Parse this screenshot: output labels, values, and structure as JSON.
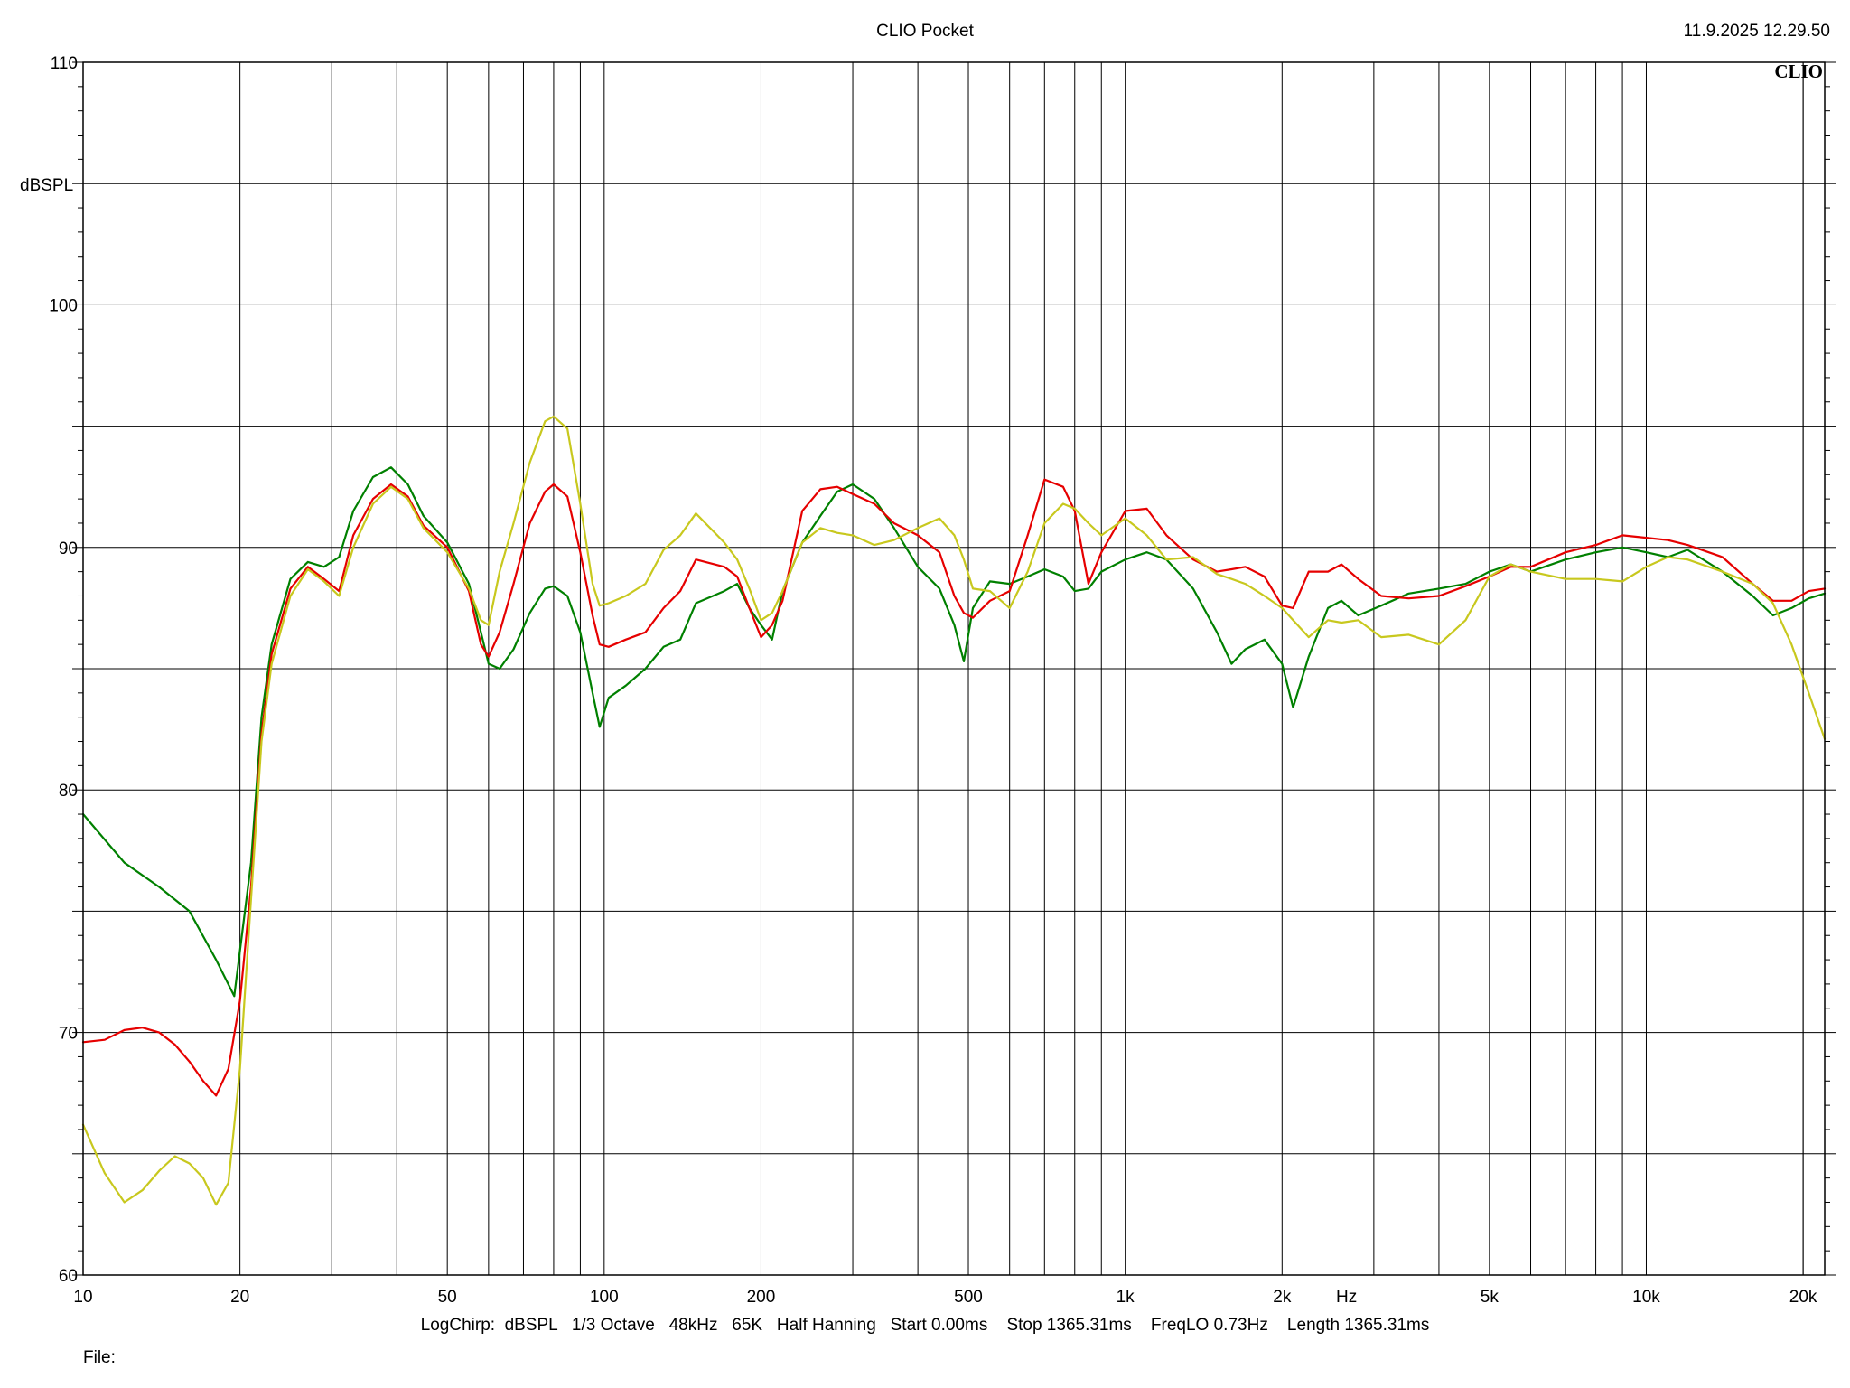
{
  "app_title": "CLIO Pocket",
  "timestamp": "11.9.2025 12.29.50",
  "watermark": "CLIO",
  "settings_line": "LogChirp:  dBSPL   1/3 Octave   48kHz   65K   Half Hanning   Start 0.00ms    Stop 1365.31ms    FreqLO 0.73Hz    Length 1365.31ms",
  "file_label": "File:",
  "chart_data": {
    "type": "line",
    "title": "",
    "xlabel": "Hz",
    "ylabel": "dBSPL",
    "x_scale": "log",
    "xlim": [
      10,
      22000
    ],
    "ylim": [
      60,
      110
    ],
    "grid": true,
    "x_ticks": [
      {
        "value": 10,
        "label": "10"
      },
      {
        "value": 20,
        "label": "20"
      },
      {
        "value": 50,
        "label": "50"
      },
      {
        "value": 100,
        "label": "100"
      },
      {
        "value": 200,
        "label": "200"
      },
      {
        "value": 500,
        "label": "500"
      },
      {
        "value": 1000,
        "label": "1k"
      },
      {
        "value": 2000,
        "label": "2k"
      },
      {
        "value": 5000,
        "label": "5k"
      },
      {
        "value": 10000,
        "label": "10k"
      },
      {
        "value": 20000,
        "label": "20k"
      }
    ],
    "y_ticks": [
      {
        "value": 60,
        "label": "60"
      },
      {
        "value": 70,
        "label": "70"
      },
      {
        "value": 80,
        "label": "80"
      },
      {
        "value": 90,
        "label": "90"
      },
      {
        "value": 100,
        "label": "100"
      },
      {
        "value": 110,
        "label": "110"
      }
    ],
    "series": [
      {
        "color": "#008000",
        "points": [
          [
            10,
            79
          ],
          [
            12,
            77
          ],
          [
            14,
            76
          ],
          [
            16,
            75
          ],
          [
            18,
            73
          ],
          [
            19.5,
            71.5
          ],
          [
            21,
            77
          ],
          [
            22,
            83
          ],
          [
            23,
            86
          ],
          [
            25,
            88.7
          ],
          [
            27,
            89.4
          ],
          [
            29,
            89.2
          ],
          [
            31,
            89.6
          ],
          [
            33,
            91.5
          ],
          [
            36,
            92.9
          ],
          [
            39,
            93.3
          ],
          [
            42,
            92.6
          ],
          [
            45,
            91.3
          ],
          [
            50,
            90.2
          ],
          [
            55,
            88.5
          ],
          [
            58,
            86.5
          ],
          [
            60,
            85.2
          ],
          [
            63,
            85.0
          ],
          [
            67,
            85.8
          ],
          [
            72,
            87.3
          ],
          [
            77,
            88.3
          ],
          [
            80,
            88.4
          ],
          [
            85,
            88.0
          ],
          [
            90,
            86.5
          ],
          [
            95,
            84.0
          ],
          [
            98,
            82.6
          ],
          [
            102,
            83.8
          ],
          [
            110,
            84.3
          ],
          [
            120,
            85.0
          ],
          [
            130,
            85.9
          ],
          [
            140,
            86.2
          ],
          [
            150,
            87.7
          ],
          [
            170,
            88.2
          ],
          [
            180,
            88.5
          ],
          [
            190,
            87.5
          ],
          [
            200,
            86.8
          ],
          [
            210,
            86.2
          ],
          [
            220,
            88.2
          ],
          [
            240,
            90.2
          ],
          [
            260,
            91.3
          ],
          [
            280,
            92.3
          ],
          [
            300,
            92.6
          ],
          [
            330,
            92.0
          ],
          [
            360,
            90.8
          ],
          [
            400,
            89.2
          ],
          [
            440,
            88.3
          ],
          [
            470,
            86.8
          ],
          [
            490,
            85.3
          ],
          [
            510,
            87.5
          ],
          [
            550,
            88.6
          ],
          [
            600,
            88.5
          ],
          [
            650,
            88.8
          ],
          [
            700,
            89.1
          ],
          [
            760,
            88.8
          ],
          [
            800,
            88.2
          ],
          [
            850,
            88.3
          ],
          [
            900,
            89.0
          ],
          [
            1000,
            89.5
          ],
          [
            1100,
            89.8
          ],
          [
            1200,
            89.5
          ],
          [
            1350,
            88.3
          ],
          [
            1500,
            86.5
          ],
          [
            1600,
            85.2
          ],
          [
            1700,
            85.8
          ],
          [
            1850,
            86.2
          ],
          [
            2000,
            85.2
          ],
          [
            2100,
            83.4
          ],
          [
            2250,
            85.5
          ],
          [
            2450,
            87.5
          ],
          [
            2600,
            87.8
          ],
          [
            2800,
            87.2
          ],
          [
            3100,
            87.6
          ],
          [
            3500,
            88.1
          ],
          [
            4000,
            88.3
          ],
          [
            4500,
            88.5
          ],
          [
            5000,
            89.0
          ],
          [
            5500,
            89.3
          ],
          [
            6000,
            89.0
          ],
          [
            7000,
            89.5
          ],
          [
            8000,
            89.8
          ],
          [
            9000,
            90.0
          ],
          [
            10000,
            89.8
          ],
          [
            11000,
            89.6
          ],
          [
            12000,
            89.9
          ],
          [
            14000,
            89.0
          ],
          [
            16000,
            88.0
          ],
          [
            17500,
            87.2
          ],
          [
            19000,
            87.5
          ],
          [
            20500,
            87.9
          ],
          [
            22000,
            88.1
          ]
        ]
      },
      {
        "color": "#e60000",
        "points": [
          [
            10,
            69.6
          ],
          [
            11,
            69.7
          ],
          [
            12,
            70.1
          ],
          [
            13,
            70.2
          ],
          [
            14,
            70.0
          ],
          [
            15,
            69.5
          ],
          [
            16,
            68.8
          ],
          [
            17,
            68.0
          ],
          [
            18,
            67.4
          ],
          [
            19,
            68.5
          ],
          [
            20,
            71.3
          ],
          [
            21,
            76.0
          ],
          [
            22,
            82.3
          ],
          [
            23,
            85.6
          ],
          [
            25,
            88.3
          ],
          [
            27,
            89.2
          ],
          [
            29,
            88.7
          ],
          [
            31,
            88.2
          ],
          [
            33,
            90.5
          ],
          [
            36,
            92.0
          ],
          [
            39,
            92.6
          ],
          [
            42,
            92.1
          ],
          [
            45,
            90.9
          ],
          [
            50,
            90.0
          ],
          [
            55,
            88.2
          ],
          [
            58,
            86.0
          ],
          [
            60,
            85.5
          ],
          [
            63,
            86.5
          ],
          [
            67,
            88.5
          ],
          [
            72,
            91.0
          ],
          [
            77,
            92.3
          ],
          [
            80,
            92.6
          ],
          [
            85,
            92.1
          ],
          [
            90,
            89.8
          ],
          [
            95,
            87.2
          ],
          [
            98,
            86.0
          ],
          [
            102,
            85.9
          ],
          [
            110,
            86.2
          ],
          [
            120,
            86.5
          ],
          [
            130,
            87.5
          ],
          [
            140,
            88.2
          ],
          [
            150,
            89.5
          ],
          [
            170,
            89.2
          ],
          [
            180,
            88.8
          ],
          [
            190,
            87.5
          ],
          [
            200,
            86.3
          ],
          [
            210,
            86.8
          ],
          [
            220,
            87.8
          ],
          [
            240,
            91.5
          ],
          [
            260,
            92.4
          ],
          [
            280,
            92.5
          ],
          [
            300,
            92.2
          ],
          [
            330,
            91.8
          ],
          [
            360,
            91.0
          ],
          [
            400,
            90.5
          ],
          [
            440,
            89.8
          ],
          [
            470,
            88.0
          ],
          [
            490,
            87.3
          ],
          [
            510,
            87.1
          ],
          [
            550,
            87.8
          ],
          [
            600,
            88.2
          ],
          [
            650,
            90.5
          ],
          [
            700,
            92.8
          ],
          [
            760,
            92.5
          ],
          [
            800,
            91.5
          ],
          [
            850,
            88.5
          ],
          [
            900,
            89.8
          ],
          [
            1000,
            91.5
          ],
          [
            1100,
            91.6
          ],
          [
            1200,
            90.5
          ],
          [
            1350,
            89.5
          ],
          [
            1500,
            89.0
          ],
          [
            1600,
            89.1
          ],
          [
            1700,
            89.2
          ],
          [
            1850,
            88.8
          ],
          [
            2000,
            87.6
          ],
          [
            2100,
            87.5
          ],
          [
            2250,
            89.0
          ],
          [
            2450,
            89.0
          ],
          [
            2600,
            89.3
          ],
          [
            2800,
            88.7
          ],
          [
            3100,
            88.0
          ],
          [
            3500,
            87.9
          ],
          [
            4000,
            88.0
          ],
          [
            4500,
            88.4
          ],
          [
            5000,
            88.8
          ],
          [
            5500,
            89.2
          ],
          [
            6000,
            89.2
          ],
          [
            7000,
            89.8
          ],
          [
            8000,
            90.1
          ],
          [
            9000,
            90.5
          ],
          [
            10000,
            90.4
          ],
          [
            11000,
            90.3
          ],
          [
            12000,
            90.1
          ],
          [
            14000,
            89.6
          ],
          [
            16000,
            88.5
          ],
          [
            17500,
            87.8
          ],
          [
            19000,
            87.8
          ],
          [
            20500,
            88.2
          ],
          [
            22000,
            88.3
          ]
        ]
      },
      {
        "color": "#c8c81e",
        "points": [
          [
            10,
            66.2
          ],
          [
            11,
            64.2
          ],
          [
            12,
            63.0
          ],
          [
            13,
            63.5
          ],
          [
            14,
            64.3
          ],
          [
            15,
            64.9
          ],
          [
            16,
            64.6
          ],
          [
            17,
            64.0
          ],
          [
            18,
            62.9
          ],
          [
            19,
            63.8
          ],
          [
            20,
            68.5
          ],
          [
            21,
            75.5
          ],
          [
            22,
            82.0
          ],
          [
            23,
            85.2
          ],
          [
            25,
            88.0
          ],
          [
            27,
            89.1
          ],
          [
            29,
            88.6
          ],
          [
            31,
            88.0
          ],
          [
            33,
            90.0
          ],
          [
            36,
            91.8
          ],
          [
            39,
            92.5
          ],
          [
            42,
            92.0
          ],
          [
            45,
            90.8
          ],
          [
            50,
            89.8
          ],
          [
            55,
            88.3
          ],
          [
            58,
            87.0
          ],
          [
            60,
            86.8
          ],
          [
            63,
            89.0
          ],
          [
            67,
            91.0
          ],
          [
            72,
            93.5
          ],
          [
            77,
            95.2
          ],
          [
            80,
            95.4
          ],
          [
            85,
            94.9
          ],
          [
            90,
            91.8
          ],
          [
            95,
            88.5
          ],
          [
            98,
            87.6
          ],
          [
            102,
            87.7
          ],
          [
            110,
            88.0
          ],
          [
            120,
            88.5
          ],
          [
            130,
            89.9
          ],
          [
            140,
            90.5
          ],
          [
            150,
            91.4
          ],
          [
            170,
            90.2
          ],
          [
            180,
            89.5
          ],
          [
            190,
            88.3
          ],
          [
            200,
            87.0
          ],
          [
            210,
            87.3
          ],
          [
            220,
            88.2
          ],
          [
            240,
            90.2
          ],
          [
            260,
            90.8
          ],
          [
            280,
            90.6
          ],
          [
            300,
            90.5
          ],
          [
            330,
            90.1
          ],
          [
            360,
            90.3
          ],
          [
            400,
            90.8
          ],
          [
            440,
            91.2
          ],
          [
            470,
            90.5
          ],
          [
            490,
            89.5
          ],
          [
            510,
            88.3
          ],
          [
            550,
            88.2
          ],
          [
            600,
            87.5
          ],
          [
            650,
            89.0
          ],
          [
            700,
            91.0
          ],
          [
            760,
            91.8
          ],
          [
            800,
            91.6
          ],
          [
            850,
            91.0
          ],
          [
            900,
            90.5
          ],
          [
            1000,
            91.2
          ],
          [
            1100,
            90.5
          ],
          [
            1200,
            89.5
          ],
          [
            1350,
            89.6
          ],
          [
            1500,
            88.9
          ],
          [
            1600,
            88.7
          ],
          [
            1700,
            88.5
          ],
          [
            1850,
            88.0
          ],
          [
            2000,
            87.5
          ],
          [
            2100,
            87.0
          ],
          [
            2250,
            86.3
          ],
          [
            2450,
            87.0
          ],
          [
            2600,
            86.9
          ],
          [
            2800,
            87.0
          ],
          [
            3100,
            86.3
          ],
          [
            3500,
            86.4
          ],
          [
            4000,
            86.0
          ],
          [
            4500,
            87.0
          ],
          [
            5000,
            88.8
          ],
          [
            5500,
            89.3
          ],
          [
            6000,
            89.0
          ],
          [
            7000,
            88.7
          ],
          [
            8000,
            88.7
          ],
          [
            9000,
            88.6
          ],
          [
            10000,
            89.2
          ],
          [
            11000,
            89.6
          ],
          [
            12000,
            89.5
          ],
          [
            14000,
            89.0
          ],
          [
            16000,
            88.5
          ],
          [
            17500,
            87.7
          ],
          [
            19000,
            86.0
          ],
          [
            20500,
            84.0
          ],
          [
            22000,
            82.1
          ]
        ]
      }
    ]
  }
}
